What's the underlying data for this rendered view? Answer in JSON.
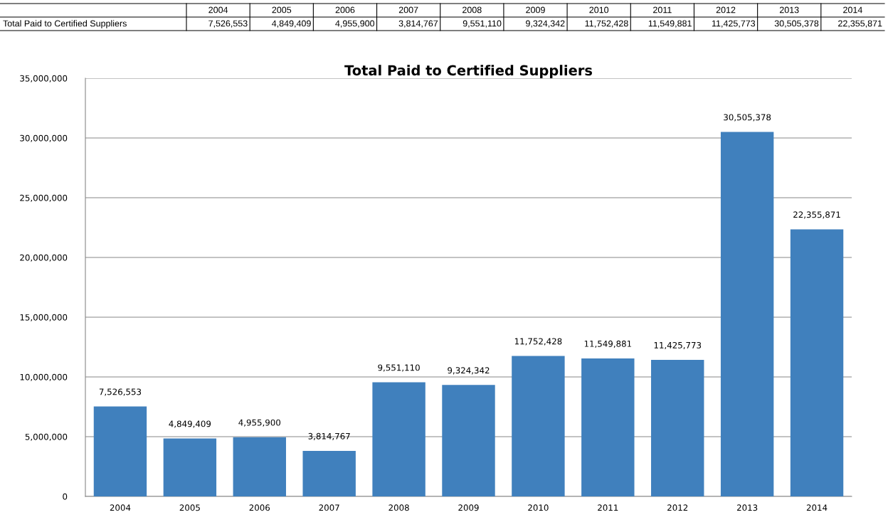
{
  "chart_data": {
    "type": "bar",
    "title": "Total Paid to Certified Suppliers",
    "categories": [
      "2004",
      "2005",
      "2006",
      "2007",
      "2008",
      "2009",
      "2010",
      "2011",
      "2012",
      "2013",
      "2014"
    ],
    "series": [
      {
        "name": "Total Paid to Certified Suppliers",
        "color": "#4080bd",
        "values": [
          7526553,
          4849409,
          4955900,
          3814767,
          9551110,
          9324342,
          11752428,
          11549881,
          11425773,
          30505378,
          22355871
        ],
        "value_labels": [
          "7,526,553",
          "4,849,409",
          "4,955,900",
          "3,814,767",
          "9,551,110",
          "9,324,342",
          "11,752,428",
          "11,549,881",
          "11,425,773",
          "30,505,378",
          "22,355,871"
        ]
      }
    ],
    "ylim": [
      0,
      35000000
    ],
    "yticks": [
      0,
      {
        "value": 5000000,
        "label": "5,000,000"
      },
      {
        "value": 10000000,
        "label": "10,000,000"
      },
      {
        "value": 15000000,
        "label": "15,000,000"
      },
      {
        "value": 20000000,
        "label": "20,000,000"
      },
      {
        "value": 25000000,
        "label": "25,000,000"
      },
      {
        "value": 30000000,
        "label": "30,000,000"
      },
      {
        "value": 35000000,
        "label": "35,000,000"
      }
    ],
    "grid": "y",
    "legend": false
  }
}
